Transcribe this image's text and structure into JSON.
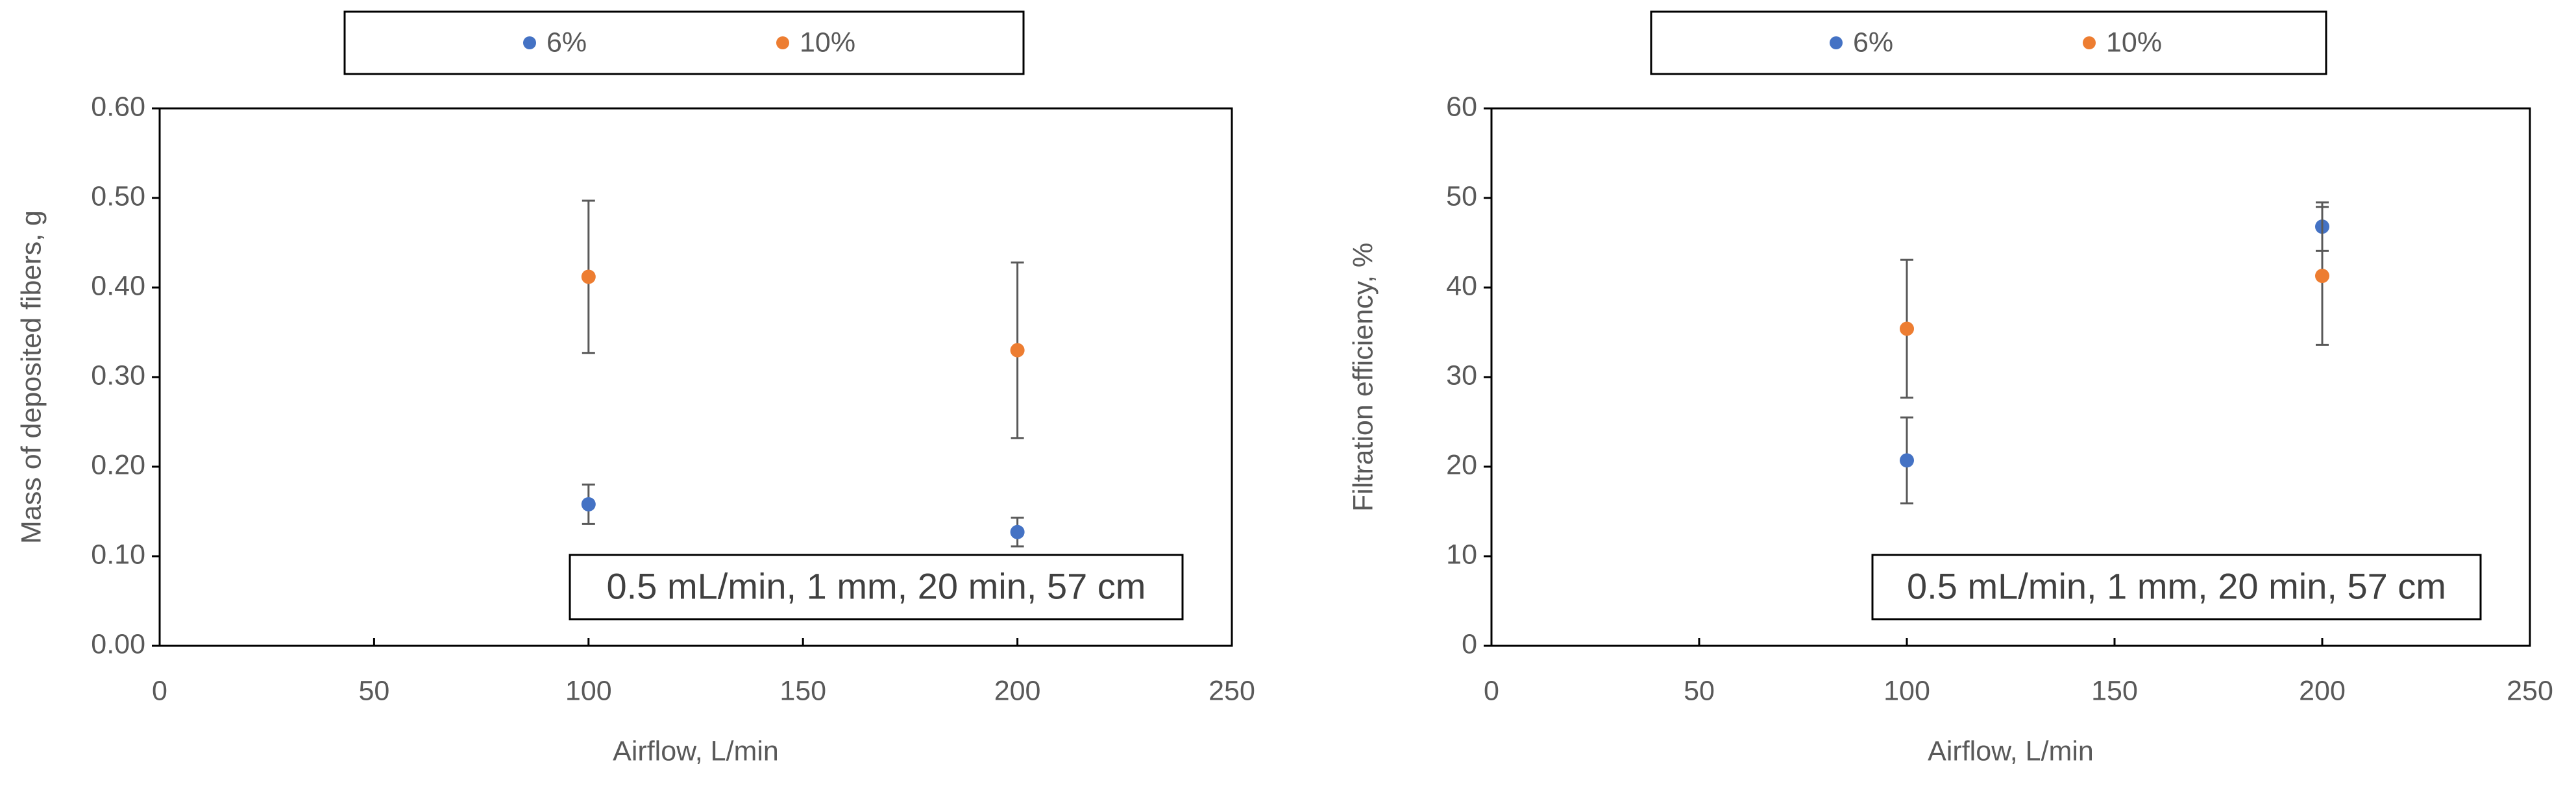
{
  "chart_data": [
    {
      "type": "scatter",
      "x_label": "Airflow, L/min",
      "y_label": "Mass of deposited fibers, g",
      "annotation": "0.5 mL/min, 1 mm, 20 min, 57 cm",
      "legend": "top",
      "xlim": [
        0,
        250
      ],
      "xticks": [
        0,
        50,
        100,
        150,
        200,
        250
      ],
      "ylim": [
        0,
        0.6
      ],
      "yticks": [
        {
          "value": 0,
          "label": "0.00"
        },
        {
          "value": 0.1,
          "label": "0.10"
        },
        {
          "value": 0.2,
          "label": "0.20"
        },
        {
          "value": 0.3,
          "label": "0.30"
        },
        {
          "value": 0.4,
          "label": "0.40"
        },
        {
          "value": 0.5,
          "label": "0.50"
        },
        {
          "value": 0.6,
          "label": "0.60"
        }
      ],
      "series": [
        {
          "name": "6%",
          "color": "#4472c4",
          "x": [
            100,
            200
          ],
          "values": [
            0.158,
            0.127
          ],
          "errors": [
            0.022,
            0.016
          ]
        },
        {
          "name": "10%",
          "color": "#ed7d31",
          "x": [
            100,
            200
          ],
          "values": [
            0.412,
            0.33
          ],
          "errors": [
            0.085,
            0.098
          ]
        }
      ]
    },
    {
      "type": "scatter",
      "x_label": "Airflow, L/min",
      "y_label": "Filtration efficiency, %",
      "annotation": "0.5 mL/min, 1 mm, 20 min, 57 cm",
      "legend": "top",
      "xlim": [
        0,
        250
      ],
      "xticks": [
        0,
        50,
        100,
        150,
        200,
        250
      ],
      "ylim": [
        0,
        60
      ],
      "yticks": [
        0,
        10,
        20,
        30,
        40,
        50,
        60
      ],
      "series": [
        {
          "name": "6%",
          "color": "#4472c4",
          "x": [
            100,
            200
          ],
          "values": [
            20.7,
            46.8
          ],
          "errors": [
            4.8,
            2.7
          ]
        },
        {
          "name": "10%",
          "color": "#ed7d31",
          "x": [
            100,
            200
          ],
          "values": [
            35.4,
            41.3
          ],
          "errors": [
            7.7,
            7.7
          ]
        }
      ]
    }
  ]
}
